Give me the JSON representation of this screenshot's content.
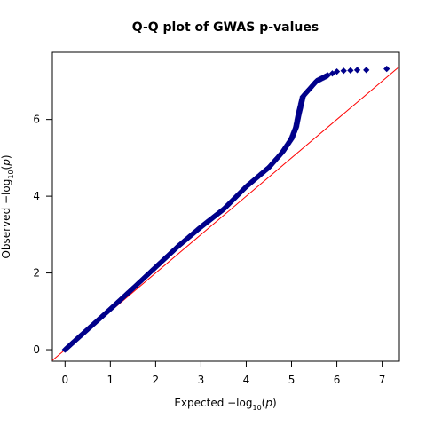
{
  "chart_data": {
    "type": "scatter",
    "title": "Q-Q plot of GWAS p-values",
    "xlabel": {
      "prefix": "Expected  −log",
      "sub": "10",
      "open": "(",
      "var": "p",
      "close": ")"
    },
    "ylabel": {
      "prefix": "Observed  −log",
      "sub": "10",
      "open": "(",
      "var": "p",
      "close": ")"
    },
    "xlim": [
      -0.28,
      7.38
    ],
    "ylim": [
      -0.3,
      7.75
    ],
    "x_ticks": [
      0,
      1,
      2,
      3,
      4,
      5,
      6,
      7
    ],
    "y_ticks": [
      0,
      2,
      4,
      6
    ],
    "grid": false,
    "reference_line": {
      "slope": 1,
      "intercept": 0,
      "color": "#ff0000"
    },
    "series": [
      {
        "marker": "diamond",
        "color": "#00008b",
        "curve": [
          [
            0.0,
            0.0
          ],
          [
            0.5,
            0.53
          ],
          [
            1.0,
            1.06
          ],
          [
            1.5,
            1.6
          ],
          [
            2.0,
            2.15
          ],
          [
            2.5,
            2.7
          ],
          [
            3.0,
            3.2
          ],
          [
            3.5,
            3.66
          ],
          [
            4.0,
            4.25
          ],
          [
            4.5,
            4.75
          ],
          [
            4.8,
            5.15
          ],
          [
            5.0,
            5.5
          ],
          [
            5.1,
            5.8
          ],
          [
            5.15,
            6.1
          ],
          [
            5.25,
            6.6
          ],
          [
            5.4,
            6.8
          ],
          [
            5.55,
            7.0
          ],
          [
            5.8,
            7.15
          ]
        ],
        "tail_points": [
          [
            5.9,
            7.2
          ],
          [
            6.0,
            7.25
          ],
          [
            6.15,
            7.27
          ],
          [
            6.3,
            7.28
          ],
          [
            6.45,
            7.29
          ],
          [
            6.65,
            7.29
          ],
          [
            7.1,
            7.32
          ]
        ]
      }
    ]
  }
}
